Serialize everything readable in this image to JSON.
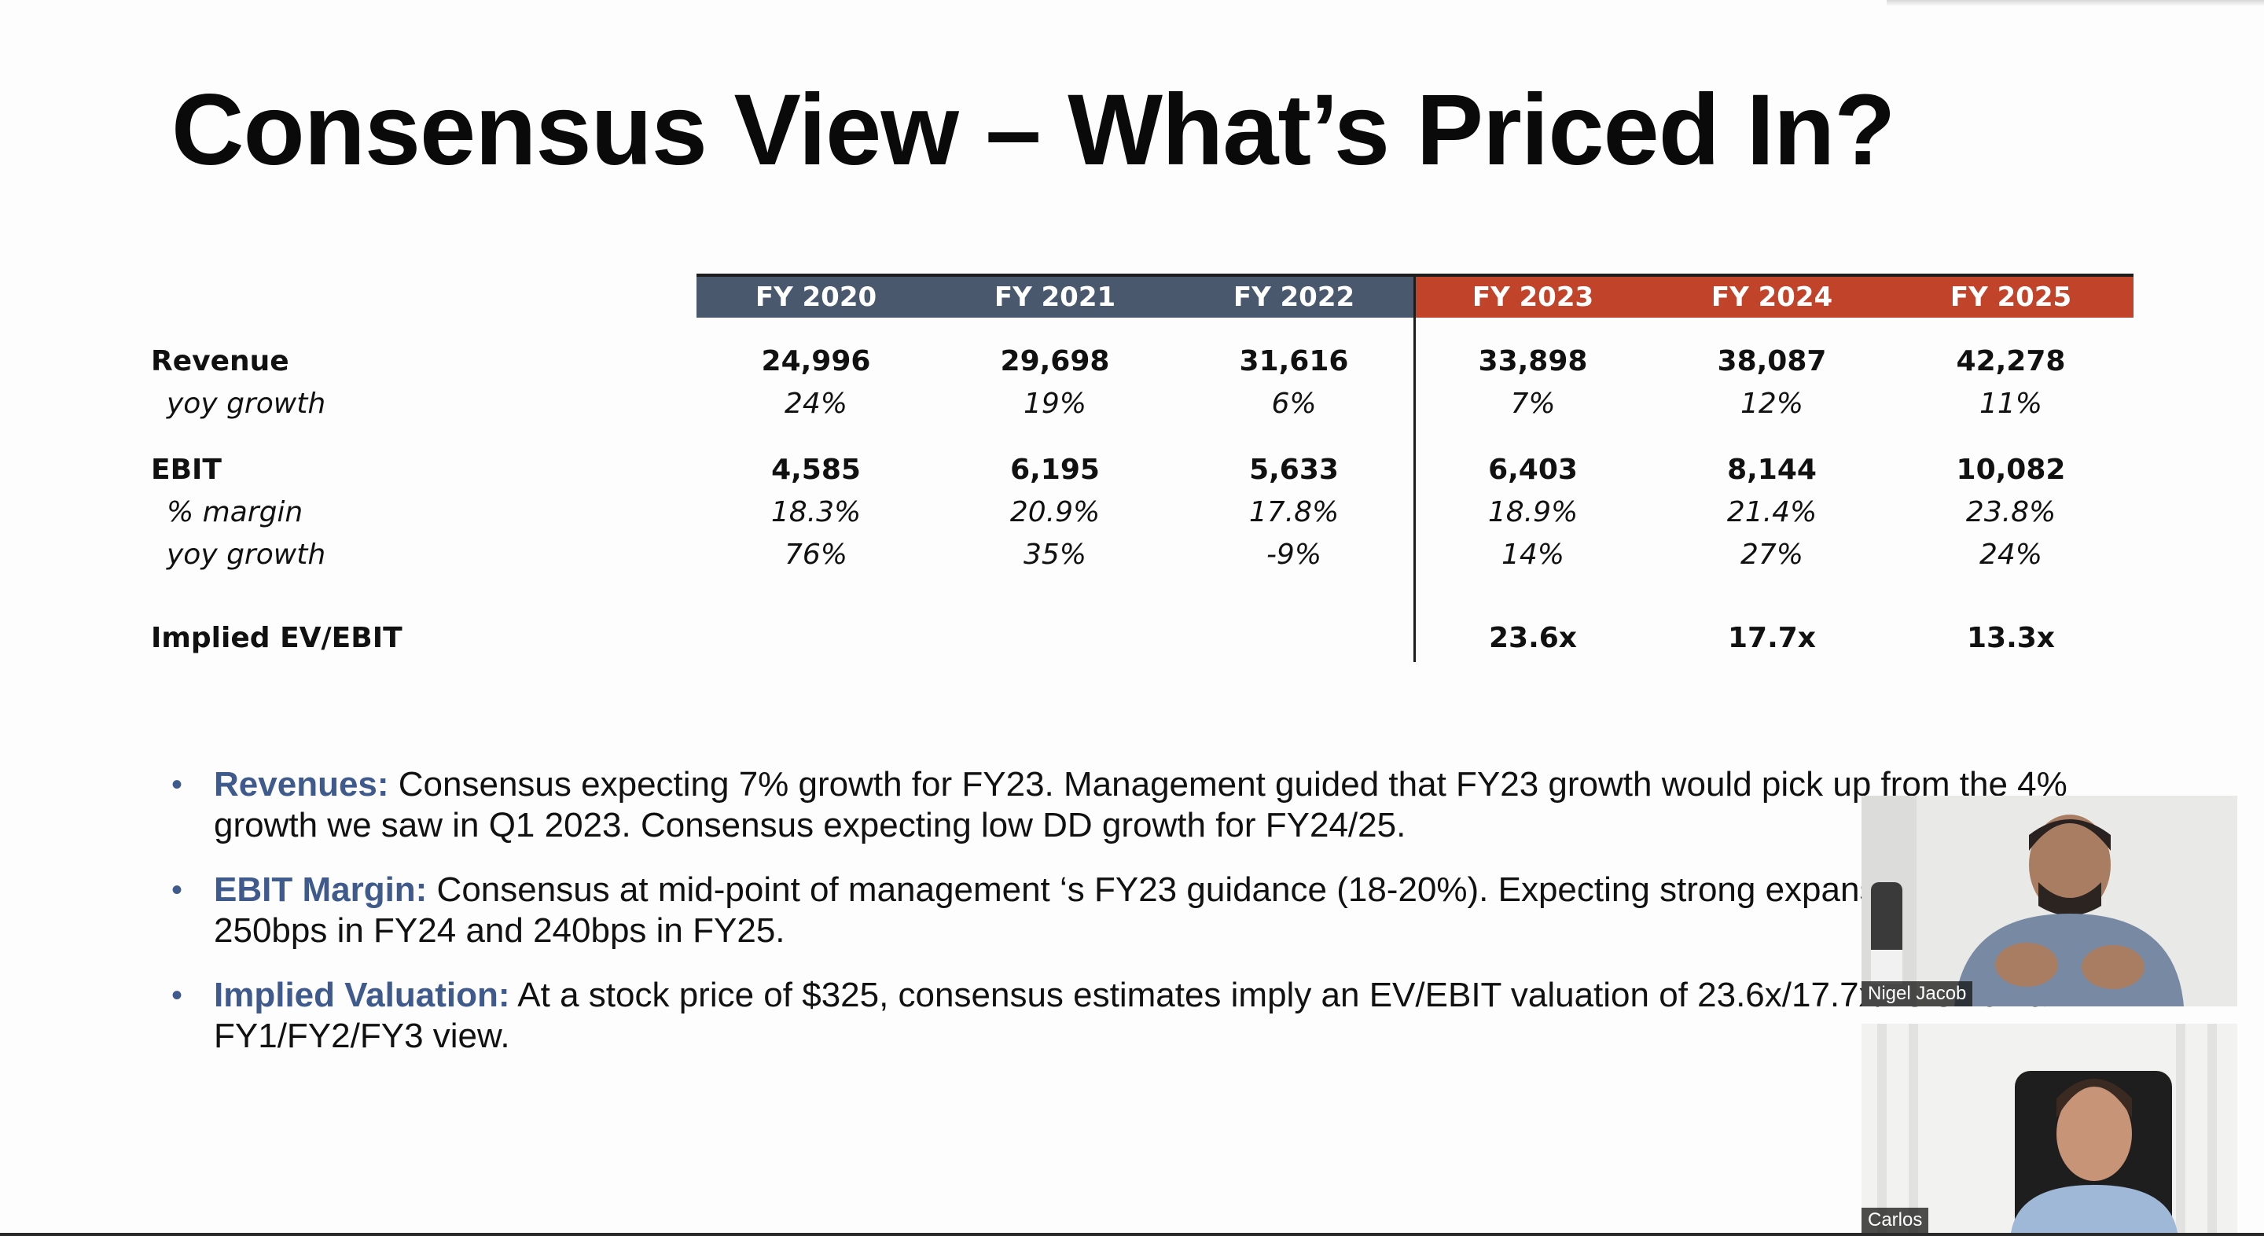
{
  "slide": {
    "title": "Consensus View – What’s Priced In?"
  },
  "table": {
    "headers": [
      "FY 2020",
      "FY 2021",
      "FY 2022",
      "FY 2023",
      "FY 2024",
      "FY 2025"
    ],
    "header_colors": {
      "historical": "#4a586e",
      "projected": "#c0432a"
    },
    "rows": [
      {
        "label": "Revenue",
        "values": [
          "24,996",
          "29,698",
          "31,616",
          "33,898",
          "38,087",
          "42,278"
        ]
      },
      {
        "label": "yoy growth",
        "values": [
          "24%",
          "19%",
          "6%",
          "7%",
          "12%",
          "11%"
        ]
      },
      {
        "label": "EBIT",
        "values": [
          "4,585",
          "6,195",
          "5,633",
          "6,403",
          "8,144",
          "10,082"
        ]
      },
      {
        "label": "% margin",
        "values": [
          "18.3%",
          "20.9%",
          "17.8%",
          "18.9%",
          "21.4%",
          "23.8%"
        ]
      },
      {
        "label": "yoy growth",
        "values": [
          "76%",
          "35%",
          "-9%",
          "14%",
          "27%",
          "24%"
        ]
      },
      {
        "label": "Implied EV/EBIT",
        "values": [
          "",
          "",
          "",
          "23.6x",
          "17.7x",
          "13.3x"
        ]
      }
    ]
  },
  "bullets": [
    {
      "head": "Revenues:",
      "text": " Consensus expecting 7% growth for FY23. Management guided that FY23 growth would pick up from the 4% growth we saw in Q1 2023. Consensus expecting low DD growth for FY24/25."
    },
    {
      "head": "EBIT Margin:",
      "text": " Consensus at mid-point of management ‘s FY23 guidance (18-20%). Expecting strong expansion of 250bps in FY24 and 240bps in FY25."
    },
    {
      "head": "Implied Valuation:",
      "text": " At a stock price of $325, consensus estimates imply an EV/EBIT valuation of 23.6x/17.7x/13.3x on a FY1/FY2/FY3 view."
    }
  ],
  "participants": [
    {
      "name": "Nigel Jacob"
    },
    {
      "name": "Carlos"
    }
  ]
}
